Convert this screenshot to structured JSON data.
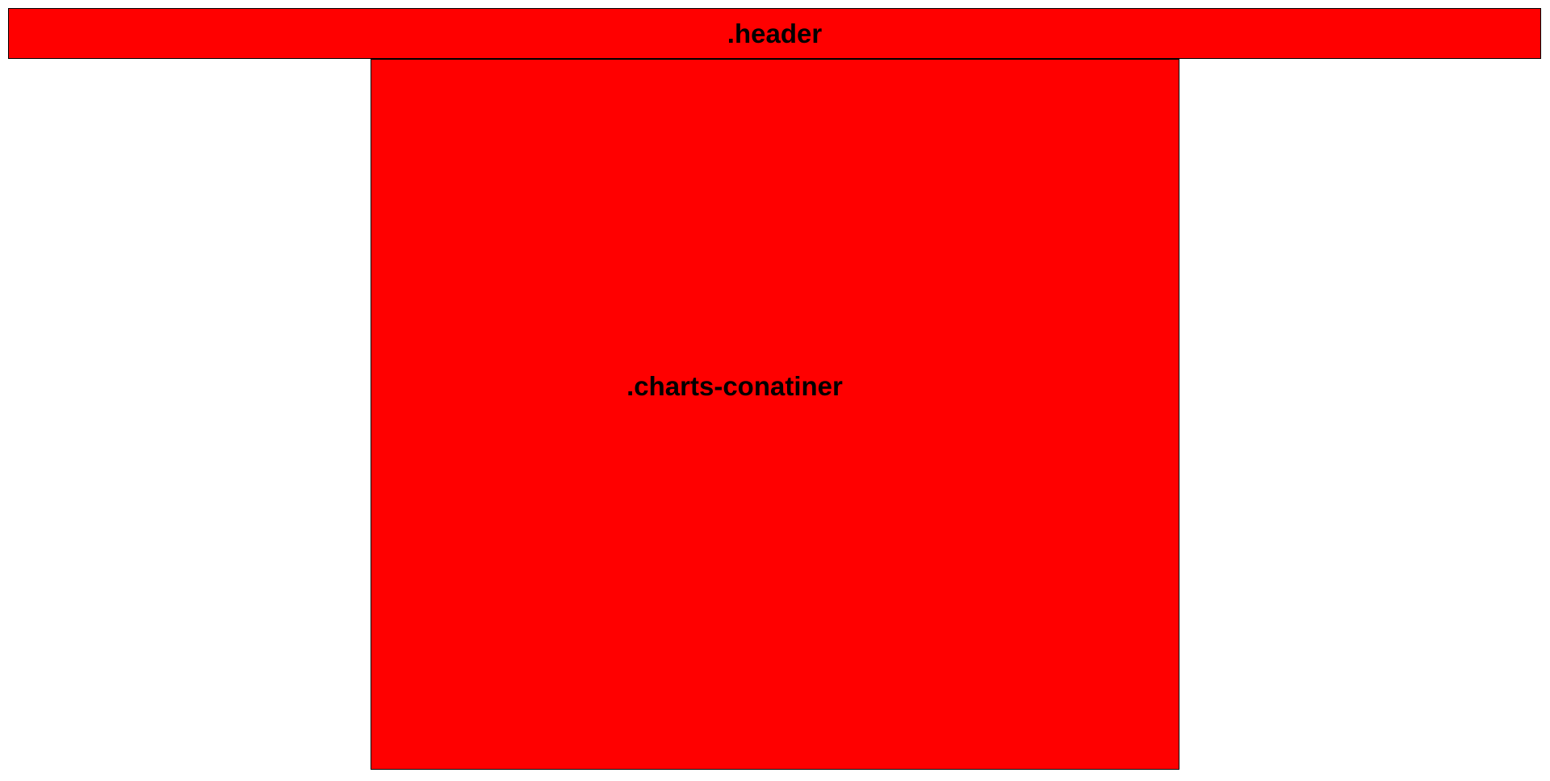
{
  "header": {
    "label": ".header",
    "fill_color": "#ff0000",
    "border_color": "#000000"
  },
  "charts_container": {
    "label": ".charts-conatiner",
    "fill_color": "#ff0000",
    "border_color": "#000000"
  },
  "background_color": "#ffffff"
}
